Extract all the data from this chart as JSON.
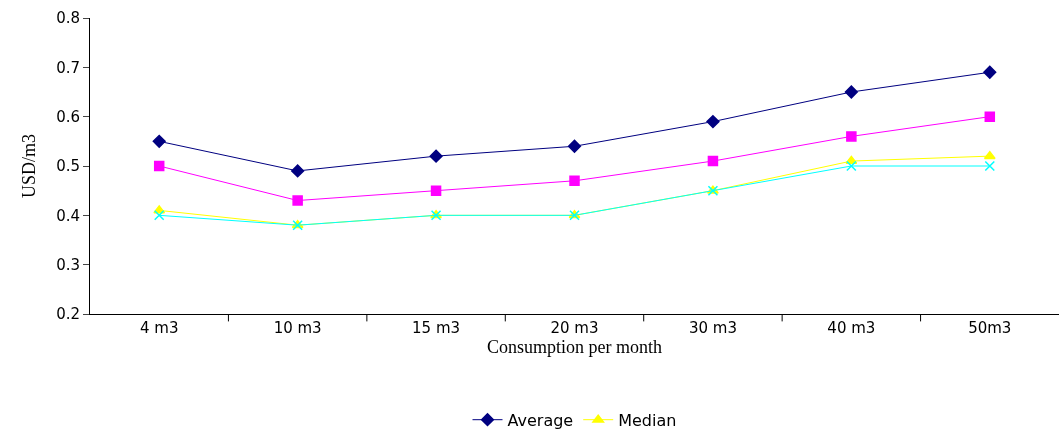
{
  "chart_data": {
    "type": "line",
    "xlabel": "Consumption per month",
    "ylabel": "USD/m3",
    "categories": [
      "4 m3",
      "10 m3",
      "15 m3",
      "20 m3",
      "30 m3",
      "40 m3",
      "50m3"
    ],
    "ylim": [
      0.2,
      0.8
    ],
    "yticks": [
      0.2,
      0.3,
      0.4,
      0.5,
      0.6,
      0.7,
      0.8
    ],
    "legend": "bottom",
    "series": [
      {
        "name": "Average",
        "color": "#000080",
        "marker": "diamond",
        "values": [
          0.55,
          0.49,
          0.52,
          0.54,
          0.59,
          0.65,
          0.69
        ]
      },
      {
        "color": "#ff00ff",
        "marker": "square",
        "values": [
          0.5,
          0.43,
          0.45,
          0.47,
          0.51,
          0.56,
          0.6
        ]
      },
      {
        "name": "Median",
        "color": "#ffff00",
        "marker": "triangle",
        "values": [
          0.41,
          0.38,
          0.4,
          0.4,
          0.45,
          0.51,
          0.52
        ]
      },
      {
        "color": "#00ffff",
        "marker": "cross",
        "values": [
          0.4,
          0.38,
          0.4,
          0.4,
          0.45,
          0.5,
          0.5
        ]
      }
    ]
  }
}
